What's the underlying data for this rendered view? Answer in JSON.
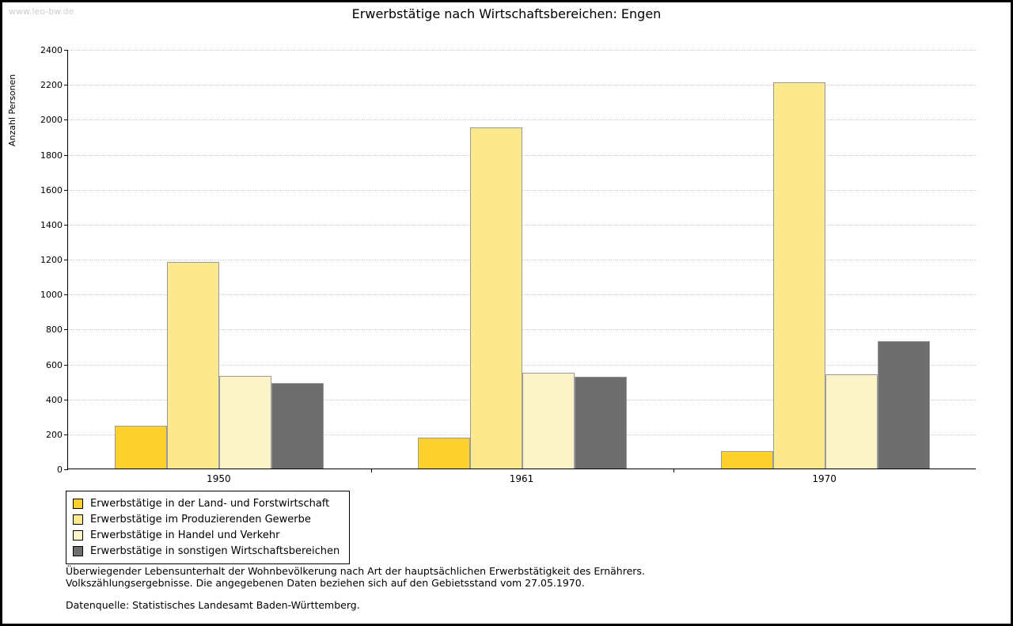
{
  "watermark": "www.leo-bw.de",
  "chart_data": {
    "type": "bar",
    "title": "Erwerbstätige nach Wirtschaftsbereichen: Engen",
    "ylabel": "Anzahl Personen",
    "xlabel": "",
    "categories": [
      "1950",
      "1961",
      "1970"
    ],
    "series": [
      {
        "name": "Erwerbstätige in der Land- und Forstwirtschaft",
        "color": "#fcd02d",
        "values": [
          245,
          175,
          100
        ]
      },
      {
        "name": "Erwerbstätige im Produzierenden Gewerbe",
        "color": "#fce98e",
        "values": [
          1180,
          1950,
          2210
        ]
      },
      {
        "name": "Erwerbstätige in Handel und Verkehr",
        "color": "#fdf3c8",
        "values": [
          530,
          550,
          540
        ]
      },
      {
        "name": "Erwerbstätige in sonstigen Wirtschaftsbereichen",
        "color": "#6e6e6e",
        "values": [
          490,
          525,
          730
        ]
      }
    ],
    "ylim": [
      0,
      2400
    ],
    "ytick_step": 200,
    "grid": true,
    "legend_position": "bottom-left"
  },
  "footnotes": {
    "line1": "Überwiegender Lebensunterhalt der Wohnbevölkerung nach Art der hauptsächlichen Erwerbstätigkeit des Ernährers.",
    "line2": "Volkszählungsergebnisse. Die angegebenen Daten beziehen sich auf den Gebietsstand vom 27.05.1970.",
    "source": "Datenquelle: Statistisches Landesamt Baden-Württemberg."
  }
}
